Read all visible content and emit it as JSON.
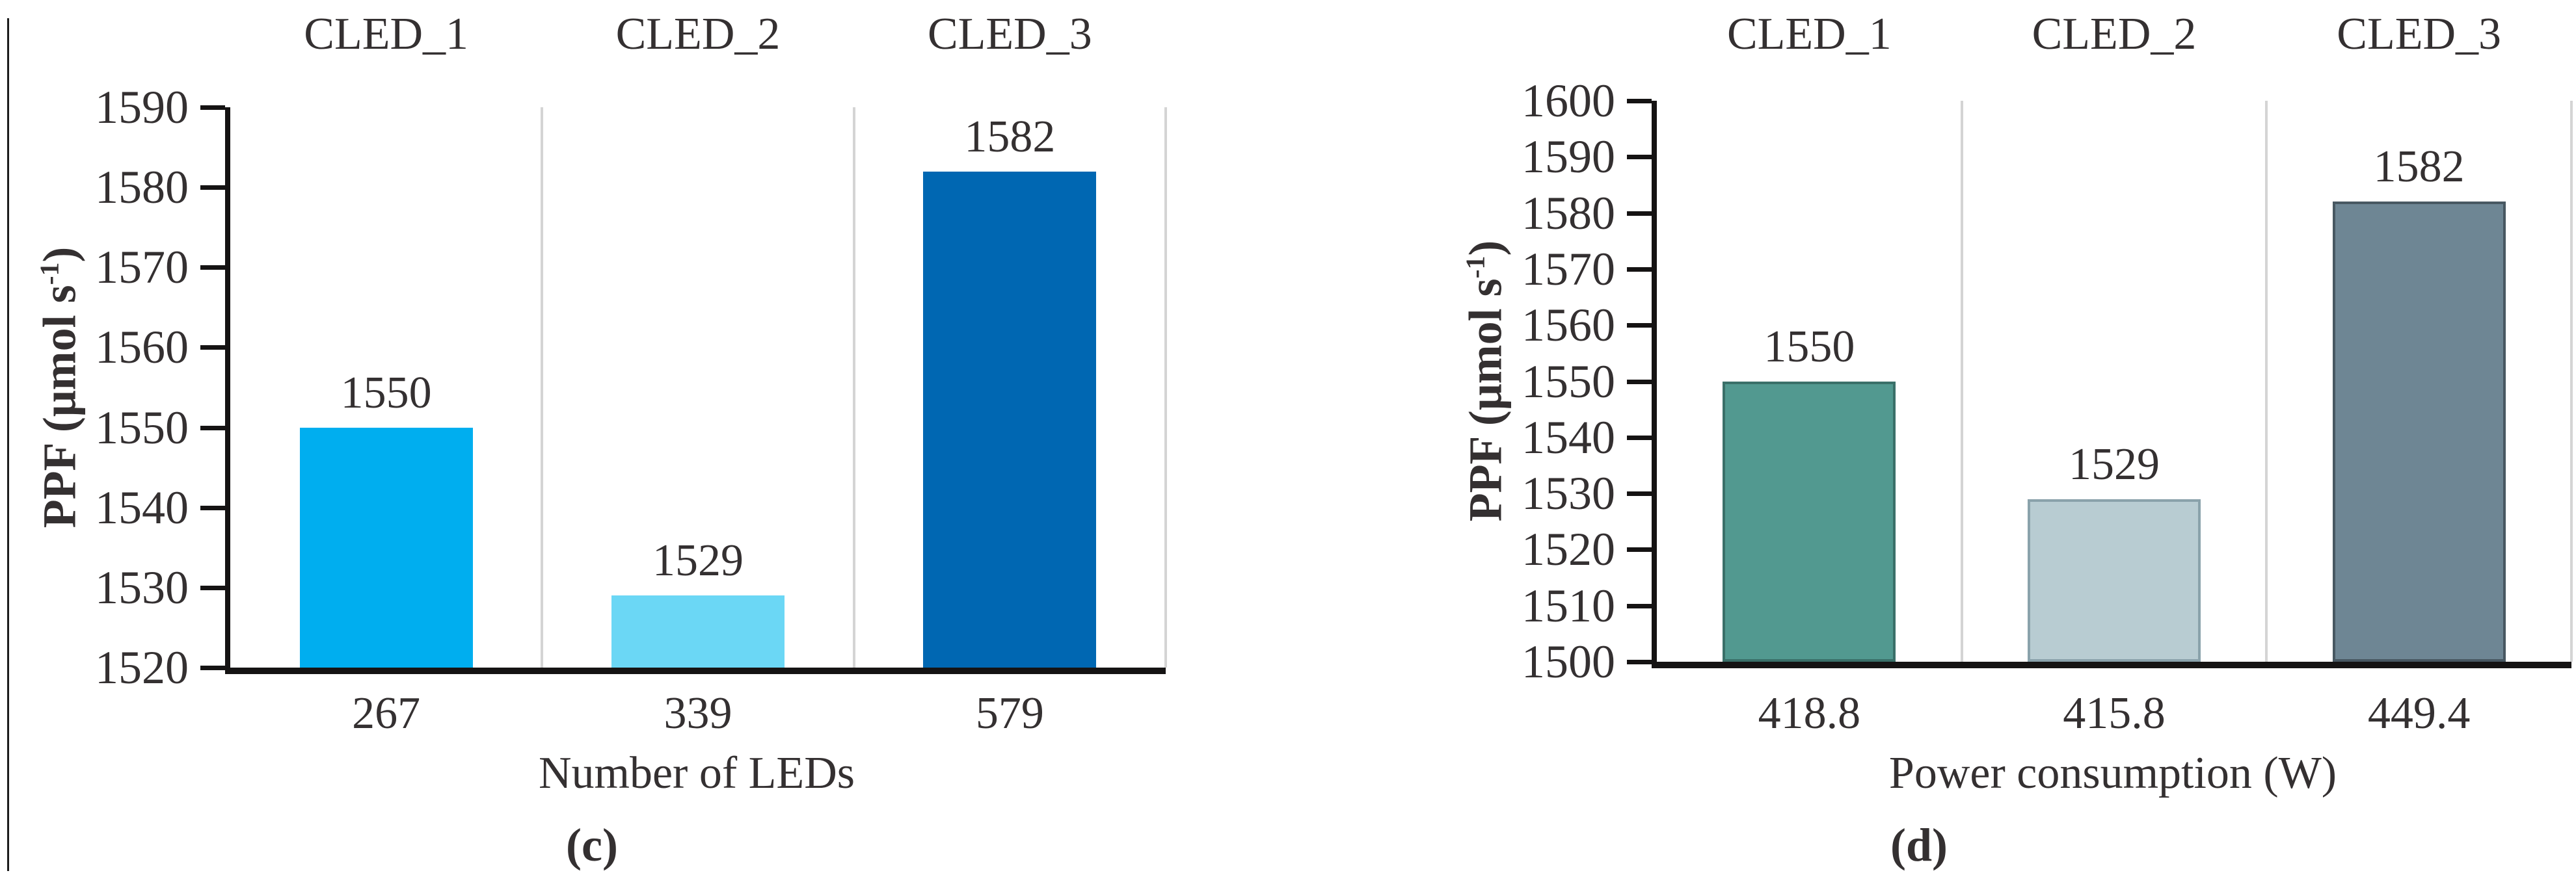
{
  "figure": {
    "background": "#ffffff",
    "text_color": "#343031",
    "axis_color": "#151313",
    "grid_color": "#d4d4d4",
    "charts": [
      {
        "panel": "c",
        "caption": "(c)",
        "group_labels": [
          "CLED_1",
          "CLED_2",
          "CLED_3"
        ],
        "y_axis": {
          "label_prefix": "PPF (μmol s",
          "label_sup": "-1",
          "label_suffix": ")",
          "min": 1520,
          "max": 1590,
          "step": 10,
          "ticks": [
            "1590",
            "1580",
            "1570",
            "1560",
            "1550",
            "1540",
            "1530",
            "1520"
          ]
        },
        "x_axis": {
          "title": "Number of LEDs",
          "categories": [
            "267",
            "339",
            "579"
          ]
        },
        "bars": [
          {
            "value": 1550,
            "label": "1550",
            "fill": "#00aeef",
            "border": "#00aeef"
          },
          {
            "value": 1529,
            "label": "1529",
            "fill": "#6bd7f5",
            "border": "#6bd7f5"
          },
          {
            "value": 1582,
            "label": "1582",
            "fill": "#0067b2",
            "border": "#0067b2"
          }
        ]
      },
      {
        "panel": "d",
        "caption": "(d)",
        "group_labels": [
          "CLED_1",
          "CLED_2",
          "CLED_3"
        ],
        "y_axis": {
          "label_prefix": "PPF (μmol s",
          "label_sup": "-1",
          "label_suffix": ")",
          "min": 1500,
          "max": 1600,
          "step": 10,
          "ticks": [
            "1600",
            "1590",
            "1580",
            "1570",
            "1560",
            "1550",
            "1540",
            "1530",
            "1520",
            "1510",
            "1500"
          ]
        },
        "x_axis": {
          "title": "Power consumption (W)",
          "categories": [
            "418.8",
            "415.8",
            "449.4"
          ]
        },
        "bars": [
          {
            "value": 1550,
            "label": "1550",
            "fill": "#529990",
            "border": "#3a7069"
          },
          {
            "value": 1529,
            "label": "1529",
            "fill": "#b8ccd2",
            "border": "#8aa2ab"
          },
          {
            "value": 1582,
            "label": "1582",
            "fill": "#6e8694",
            "border": "#485862"
          }
        ]
      }
    ]
  },
  "chart_data": [
    {
      "type": "bar",
      "title": "(c)",
      "categories": [
        "267",
        "339",
        "579"
      ],
      "values": [
        1550,
        1529,
        1582
      ],
      "bar_top_labels": [
        "1550",
        "1529",
        "1582"
      ],
      "group_labels": [
        "CLED_1",
        "CLED_2",
        "CLED_3"
      ],
      "xlabel": "Number of LEDs",
      "ylabel": "PPF (μmol s⁻¹)",
      "ylim": [
        1520,
        1590
      ],
      "ytick_step": 10,
      "grid": "vertical category separators",
      "legend": false,
      "bar_colors": [
        "#00aeef",
        "#6bd7f5",
        "#0067b2"
      ]
    },
    {
      "type": "bar",
      "title": "(d)",
      "categories": [
        "418.8",
        "415.8",
        "449.4"
      ],
      "values": [
        1550,
        1529,
        1582
      ],
      "bar_top_labels": [
        "1550",
        "1529",
        "1582"
      ],
      "group_labels": [
        "CLED_1",
        "CLED_2",
        "CLED_3"
      ],
      "xlabel": "Power consumption (W)",
      "ylabel": "PPF (μmol s⁻¹)",
      "ylim": [
        1500,
        1600
      ],
      "ytick_step": 10,
      "grid": "vertical category separators",
      "legend": false,
      "bar_colors": [
        "#529990",
        "#b8ccd2",
        "#6e8694"
      ]
    }
  ]
}
